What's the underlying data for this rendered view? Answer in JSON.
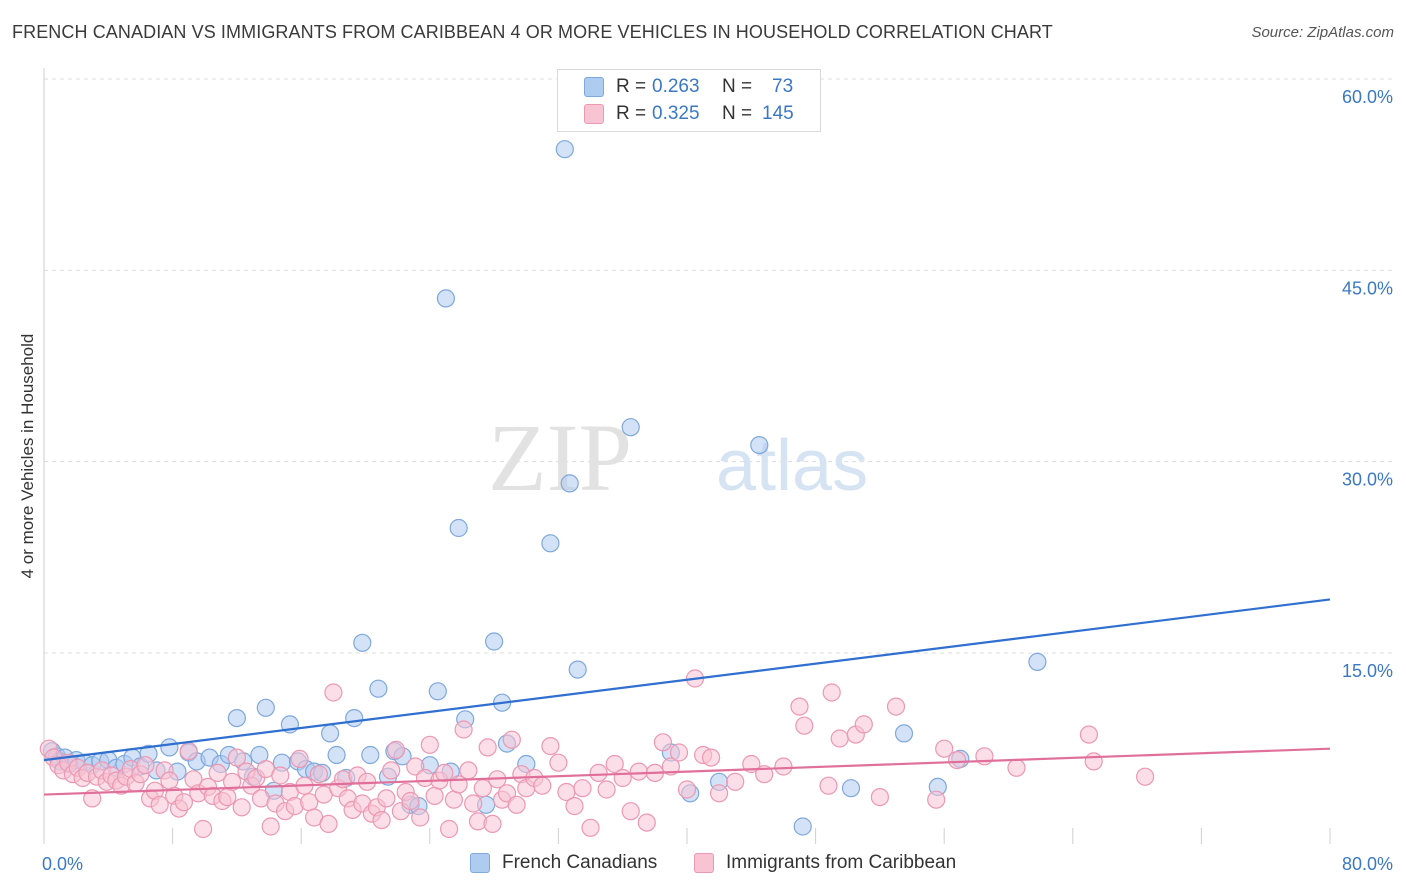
{
  "title": "FRENCH CANADIAN VS IMMIGRANTS FROM CARIBBEAN 4 OR MORE VEHICLES IN HOUSEHOLD CORRELATION CHART",
  "source": "Source: ZipAtlas.com",
  "watermark": {
    "zip": "ZIP",
    "atlas": "atlas"
  },
  "legend_top": {
    "rows": [
      {
        "r_label": "R =",
        "r_value": "0.263",
        "n_label": "N =",
        "n_value": "73",
        "color": "#aecbf0",
        "border": "#7fa8dc"
      },
      {
        "r_label": "R =",
        "r_value": "0.325",
        "n_label": "N =",
        "n_value": "145",
        "color": "#f8c3d3",
        "border": "#ec98b2"
      }
    ]
  },
  "legend_bottom": [
    {
      "label": "French Canadians",
      "color": "#aecbf0",
      "border": "#7fa8dc"
    },
    {
      "label": "Immigrants from Caribbean",
      "color": "#f8c3d3",
      "border": "#ec98b2"
    }
  ],
  "chart_data": {
    "type": "scatter",
    "ylabel": "4 or more Vehicles in Household",
    "xlabel": "",
    "xlim": [
      0,
      80
    ],
    "ylim": [
      0,
      62
    ],
    "x_tick_labels": [
      {
        "x": 0,
        "label": "0.0%"
      },
      {
        "x": 80,
        "label": "80.0%"
      }
    ],
    "y_tick_labels": [
      {
        "y": 15,
        "label": "15.0%"
      },
      {
        "y": 30,
        "label": "30.0%"
      },
      {
        "y": 45,
        "label": "45.0%"
      },
      {
        "y": 60,
        "label": "60.0%"
      }
    ],
    "grid": "horizontal dashed",
    "series": [
      {
        "name": "French Canadians",
        "color": "#7fa8dc",
        "fill": "#aecbf0",
        "line_color": "#2f6fd0",
        "trend": {
          "x": [
            0,
            80
          ],
          "y": [
            6.6,
            19.2
          ]
        },
        "points": [
          [
            0.5,
            7.3
          ],
          [
            0.8,
            6.9
          ],
          [
            1.0,
            6.5
          ],
          [
            1.3,
            6.8
          ],
          [
            1.6,
            6.3
          ],
          [
            2.0,
            6.6
          ],
          [
            2.5,
            6.4
          ],
          [
            3.0,
            6.2
          ],
          [
            3.5,
            6.5
          ],
          [
            4.0,
            6.6
          ],
          [
            4.5,
            6.0
          ],
          [
            5.0,
            6.3
          ],
          [
            5.5,
            6.8
          ],
          [
            6.0,
            6.1
          ],
          [
            6.5,
            7.1
          ],
          [
            7.0,
            5.8
          ],
          [
            7.8,
            7.6
          ],
          [
            8.3,
            5.7
          ],
          [
            9.0,
            7.2
          ],
          [
            9.5,
            6.5
          ],
          [
            10.3,
            6.8
          ],
          [
            11.0,
            6.3
          ],
          [
            11.5,
            7.0
          ],
          [
            12.0,
            9.9
          ],
          [
            12.4,
            6.5
          ],
          [
            13.0,
            5.3
          ],
          [
            13.4,
            7.0
          ],
          [
            13.8,
            10.7
          ],
          [
            14.3,
            4.2
          ],
          [
            14.8,
            6.4
          ],
          [
            15.3,
            9.4
          ],
          [
            15.8,
            6.5
          ],
          [
            16.3,
            5.9
          ],
          [
            16.8,
            5.7
          ],
          [
            17.3,
            5.6
          ],
          [
            17.8,
            8.7
          ],
          [
            18.2,
            7.0
          ],
          [
            18.8,
            5.2
          ],
          [
            19.3,
            9.9
          ],
          [
            19.8,
            15.8
          ],
          [
            20.3,
            7.0
          ],
          [
            20.8,
            12.2
          ],
          [
            21.4,
            5.3
          ],
          [
            21.8,
            7.3
          ],
          [
            22.3,
            6.9
          ],
          [
            22.8,
            3.1
          ],
          [
            23.3,
            3.0
          ],
          [
            24.0,
            6.2
          ],
          [
            24.5,
            12.0
          ],
          [
            25.0,
            42.8
          ],
          [
            25.3,
            5.7
          ],
          [
            25.8,
            24.8
          ],
          [
            26.2,
            9.8
          ],
          [
            27.5,
            3.1
          ],
          [
            28.0,
            15.9
          ],
          [
            28.5,
            11.1
          ],
          [
            28.8,
            7.9
          ],
          [
            30.0,
            6.3
          ],
          [
            31.5,
            23.6
          ],
          [
            32.4,
            54.5
          ],
          [
            32.7,
            28.3
          ],
          [
            33.2,
            13.7
          ],
          [
            36.5,
            32.7
          ],
          [
            39.0,
            7.2
          ],
          [
            40.2,
            4.0
          ],
          [
            42.0,
            4.9
          ],
          [
            44.5,
            31.3
          ],
          [
            47.2,
            1.4
          ],
          [
            50.2,
            4.4
          ],
          [
            53.5,
            8.7
          ],
          [
            55.6,
            4.5
          ],
          [
            57.0,
            6.7
          ],
          [
            61.8,
            14.3
          ]
        ]
      },
      {
        "name": "Immigrants from Caribbean",
        "color": "#ec98b2",
        "fill": "#f8c3d3",
        "line_color": "#e0709a",
        "trend": {
          "x": [
            0,
            80
          ],
          "y": [
            3.9,
            7.5
          ]
        },
        "points": [
          [
            0.3,
            7.5
          ],
          [
            0.6,
            6.8
          ],
          [
            0.9,
            6.2
          ],
          [
            1.2,
            5.8
          ],
          [
            1.5,
            6.4
          ],
          [
            1.8,
            5.5
          ],
          [
            2.1,
            6.0
          ],
          [
            2.4,
            5.2
          ],
          [
            2.7,
            5.6
          ],
          [
            3.0,
            3.6
          ],
          [
            3.3,
            5.3
          ],
          [
            3.6,
            5.8
          ],
          [
            3.9,
            4.9
          ],
          [
            4.2,
            5.4
          ],
          [
            4.5,
            5.0
          ],
          [
            4.8,
            4.6
          ],
          [
            5.1,
            5.3
          ],
          [
            5.4,
            5.9
          ],
          [
            5.7,
            4.8
          ],
          [
            6.0,
            5.5
          ],
          [
            6.3,
            6.2
          ],
          [
            6.6,
            3.6
          ],
          [
            6.9,
            4.2
          ],
          [
            7.2,
            3.1
          ],
          [
            7.5,
            5.8
          ],
          [
            7.8,
            5.0
          ],
          [
            8.1,
            3.8
          ],
          [
            8.4,
            2.8
          ],
          [
            8.7,
            3.3
          ],
          [
            9.0,
            7.3
          ],
          [
            9.3,
            5.1
          ],
          [
            9.6,
            4.0
          ],
          [
            9.9,
            1.2
          ],
          [
            10.2,
            4.5
          ],
          [
            10.5,
            3.8
          ],
          [
            10.8,
            5.6
          ],
          [
            11.1,
            3.4
          ],
          [
            11.4,
            3.7
          ],
          [
            11.7,
            4.9
          ],
          [
            12.0,
            6.8
          ],
          [
            12.3,
            2.9
          ],
          [
            12.6,
            5.7
          ],
          [
            12.9,
            4.6
          ],
          [
            13.2,
            5.2
          ],
          [
            13.5,
            3.6
          ],
          [
            13.8,
            5.9
          ],
          [
            14.1,
            1.4
          ],
          [
            14.4,
            3.2
          ],
          [
            14.7,
            5.4
          ],
          [
            15.0,
            2.6
          ],
          [
            15.3,
            4.1
          ],
          [
            15.6,
            3.0
          ],
          [
            15.9,
            6.7
          ],
          [
            16.2,
            4.6
          ],
          [
            16.5,
            3.3
          ],
          [
            16.8,
            2.1
          ],
          [
            17.1,
            5.5
          ],
          [
            17.4,
            3.9
          ],
          [
            17.7,
            1.6
          ],
          [
            18.0,
            11.9
          ],
          [
            18.3,
            4.4
          ],
          [
            18.6,
            5.1
          ],
          [
            18.9,
            3.6
          ],
          [
            19.2,
            2.7
          ],
          [
            19.5,
            5.4
          ],
          [
            19.8,
            3.2
          ],
          [
            20.1,
            4.9
          ],
          [
            20.4,
            2.4
          ],
          [
            20.7,
            2.9
          ],
          [
            21.0,
            1.9
          ],
          [
            21.3,
            3.6
          ],
          [
            21.6,
            5.8
          ],
          [
            21.9,
            7.4
          ],
          [
            22.2,
            2.6
          ],
          [
            22.5,
            4.1
          ],
          [
            22.8,
            3.4
          ],
          [
            23.1,
            6.1
          ],
          [
            23.4,
            2.1
          ],
          [
            23.7,
            5.2
          ],
          [
            24.0,
            7.8
          ],
          [
            24.3,
            3.8
          ],
          [
            24.6,
            5.0
          ],
          [
            24.9,
            5.6
          ],
          [
            25.2,
            1.2
          ],
          [
            25.5,
            3.5
          ],
          [
            25.8,
            4.7
          ],
          [
            26.1,
            9.0
          ],
          [
            26.4,
            5.8
          ],
          [
            26.7,
            3.2
          ],
          [
            27.0,
            1.8
          ],
          [
            27.3,
            4.4
          ],
          [
            27.6,
            7.6
          ],
          [
            27.9,
            1.6
          ],
          [
            28.2,
            5.1
          ],
          [
            28.5,
            3.5
          ],
          [
            28.8,
            4.0
          ],
          [
            29.1,
            8.2
          ],
          [
            29.4,
            3.1
          ],
          [
            29.7,
            5.5
          ],
          [
            30.0,
            4.4
          ],
          [
            30.5,
            5.2
          ],
          [
            31.0,
            4.6
          ],
          [
            31.5,
            7.7
          ],
          [
            32.0,
            6.4
          ],
          [
            32.5,
            4.1
          ],
          [
            33.0,
            3.0
          ],
          [
            33.5,
            4.4
          ],
          [
            34.0,
            1.3
          ],
          [
            34.5,
            5.6
          ],
          [
            35.0,
            4.3
          ],
          [
            35.5,
            6.3
          ],
          [
            36.0,
            5.2
          ],
          [
            36.5,
            2.6
          ],
          [
            37.0,
            5.7
          ],
          [
            37.5,
            1.7
          ],
          [
            38.0,
            5.6
          ],
          [
            38.5,
            8.0
          ],
          [
            39.0,
            6.1
          ],
          [
            39.5,
            7.2
          ],
          [
            40.0,
            4.3
          ],
          [
            40.5,
            13.0
          ],
          [
            41.0,
            7.0
          ],
          [
            41.5,
            6.8
          ],
          [
            42.0,
            4.0
          ],
          [
            43.0,
            4.9
          ],
          [
            44.0,
            6.3
          ],
          [
            44.8,
            5.5
          ],
          [
            46.0,
            6.1
          ],
          [
            47.0,
            10.8
          ],
          [
            47.3,
            9.3
          ],
          [
            48.8,
            4.6
          ],
          [
            49.0,
            11.9
          ],
          [
            49.5,
            8.3
          ],
          [
            50.5,
            8.6
          ],
          [
            51.0,
            9.4
          ],
          [
            52.0,
            3.7
          ],
          [
            53.0,
            10.8
          ],
          [
            55.5,
            3.5
          ],
          [
            56.0,
            7.5
          ],
          [
            58.5,
            6.9
          ],
          [
            60.5,
            6.0
          ],
          [
            65.0,
            8.6
          ],
          [
            65.3,
            6.5
          ],
          [
            68.5,
            5.3
          ],
          [
            56.8,
            6.6
          ]
        ]
      }
    ]
  }
}
